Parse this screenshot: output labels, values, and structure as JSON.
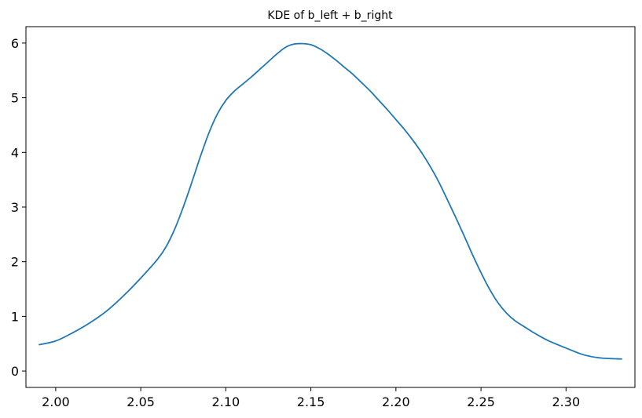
{
  "chart_data": {
    "type": "line",
    "title": "KDE of b_left + b_right",
    "xlabel": "",
    "ylabel": "",
    "xlim": [
      1.9825,
      2.3405
    ],
    "ylim": [
      -0.3,
      6.3
    ],
    "x_ticks": [
      2.0,
      2.05,
      2.1,
      2.15,
      2.2,
      2.25,
      2.3
    ],
    "x_tick_labels": [
      "2.00",
      "2.05",
      "2.10",
      "2.15",
      "2.20",
      "2.25",
      "2.30"
    ],
    "y_ticks": [
      0,
      1,
      2,
      3,
      4,
      5,
      6
    ],
    "y_tick_labels": [
      "0",
      "1",
      "2",
      "3",
      "4",
      "5",
      "6"
    ],
    "grid": false,
    "color": "#1f77b4",
    "series": [
      {
        "x": [
          1.99,
          2.0,
          2.01,
          2.02,
          2.03,
          2.04,
          2.05,
          2.06,
          2.065,
          2.07,
          2.075,
          2.08,
          2.085,
          2.09,
          2.095,
          2.1,
          2.105,
          2.11,
          2.115,
          2.12,
          2.125,
          2.13,
          2.135,
          2.14,
          2.145,
          2.15,
          2.155,
          2.16,
          2.165,
          2.17,
          2.175,
          2.18,
          2.185,
          2.19,
          2.195,
          2.2,
          2.205,
          2.21,
          2.215,
          2.22,
          2.225,
          2.23,
          2.235,
          2.24,
          2.245,
          2.25,
          2.255,
          2.26,
          2.265,
          2.27,
          2.275,
          2.28,
          2.285,
          2.29,
          2.3,
          2.31,
          2.32,
          2.333
        ],
        "y": [
          0.48,
          0.55,
          0.7,
          0.88,
          1.1,
          1.38,
          1.7,
          2.05,
          2.28,
          2.6,
          3.0,
          3.45,
          3.92,
          4.35,
          4.7,
          4.95,
          5.12,
          5.25,
          5.38,
          5.52,
          5.66,
          5.8,
          5.92,
          5.98,
          5.99,
          5.97,
          5.9,
          5.8,
          5.68,
          5.55,
          5.42,
          5.27,
          5.12,
          4.95,
          4.78,
          4.6,
          4.42,
          4.22,
          4.0,
          3.75,
          3.47,
          3.15,
          2.82,
          2.48,
          2.13,
          1.8,
          1.5,
          1.25,
          1.06,
          0.92,
          0.82,
          0.72,
          0.63,
          0.55,
          0.42,
          0.3,
          0.24,
          0.22
        ]
      }
    ]
  }
}
